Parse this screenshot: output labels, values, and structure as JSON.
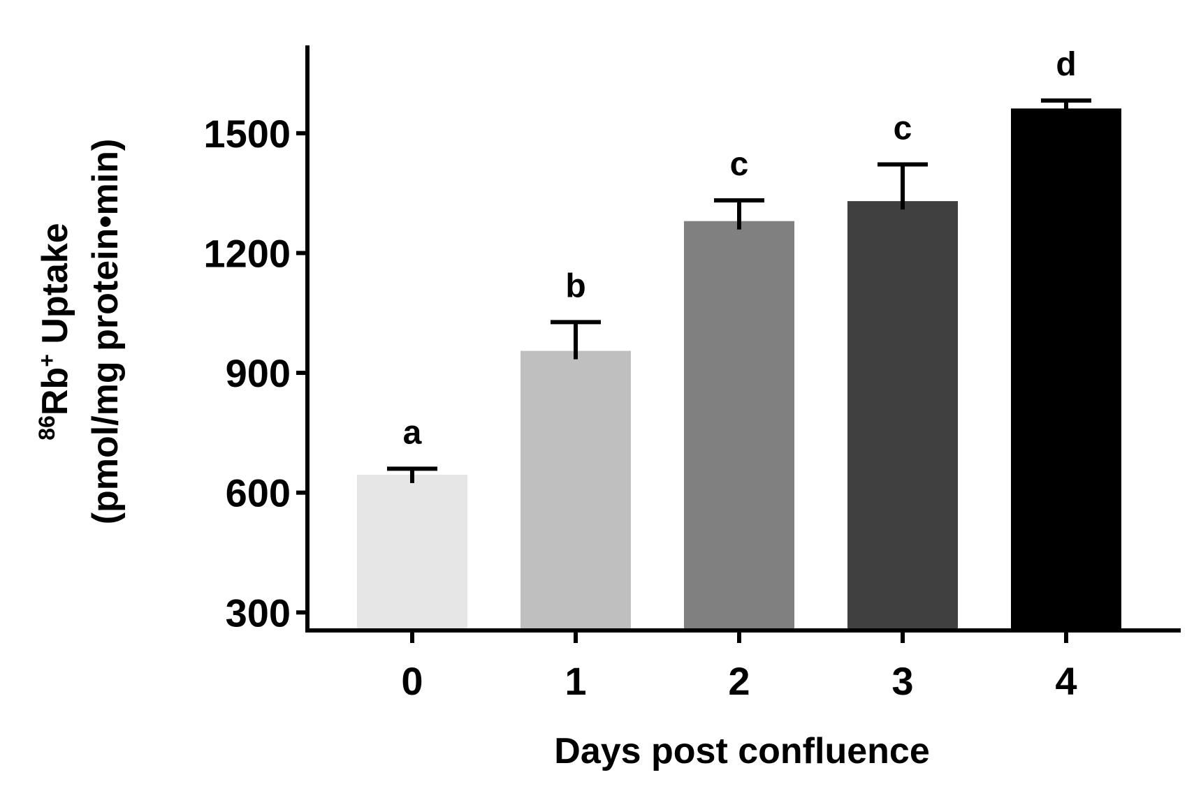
{
  "chart_data": {
    "type": "bar",
    "categories": [
      "0",
      "1",
      "2",
      "3",
      "4"
    ],
    "values": [
      645,
      955,
      1280,
      1330,
      1562
    ],
    "errors": [
      15,
      72,
      52,
      92,
      20
    ],
    "significance_labels": [
      "a",
      "b",
      "c",
      "c",
      "d"
    ],
    "bar_colors": [
      "#e6e6e6",
      "#bfbfbf",
      "#808080",
      "#404040",
      "#000000"
    ],
    "xlabel": "Days post confluence",
    "ylabel": {
      "isotope_mass": "86",
      "element": "Rb",
      "charge": "+",
      "text": " Uptake",
      "units": "(pmol/mg protein•min)"
    },
    "yticks": [
      300,
      600,
      900,
      1200,
      1500
    ],
    "ylim": [
      255,
      1720
    ],
    "grid": false,
    "legend": false
  }
}
